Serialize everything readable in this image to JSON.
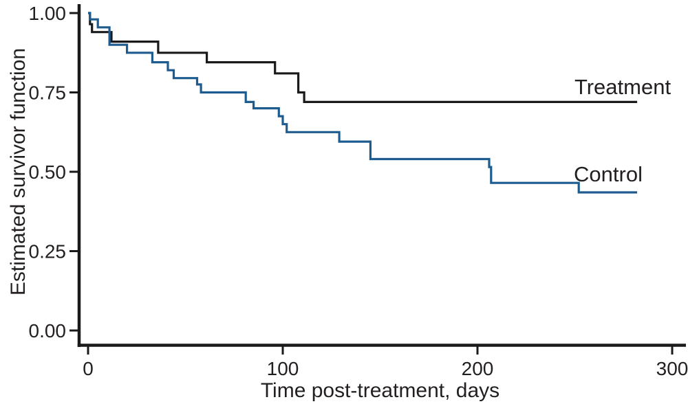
{
  "figure": {
    "background": "#ffffff",
    "text_color": "#231f20",
    "axis_color": "#1a1a1a"
  },
  "chart_data": {
    "type": "line",
    "subtype": "kaplan-meier-step",
    "title": "",
    "xlabel": "Time post-treatment, days",
    "ylabel": "Estimated survivor function",
    "xlim": [
      0,
      300
    ],
    "ylim": [
      0.0,
      1.0
    ],
    "x_ticks": [
      0,
      100,
      200,
      300
    ],
    "x_tick_labels": [
      "0",
      "100",
      "200",
      "300"
    ],
    "y_ticks": [
      0.0,
      0.25,
      0.5,
      0.75,
      1.0
    ],
    "y_tick_labels": [
      "0.00",
      "0.25",
      "0.50",
      "0.75",
      "1.00"
    ],
    "grid": false,
    "legend_position": "inline-labels-right",
    "x_end": 282,
    "series": [
      {
        "name": "Treatment",
        "label": "Treatment",
        "color": "#1a1a1a",
        "steps": [
          [
            0,
            1.0
          ],
          [
            1,
            0.965
          ],
          [
            2,
            0.94
          ],
          [
            12,
            0.91
          ],
          [
            36,
            0.875
          ],
          [
            61,
            0.845
          ],
          [
            96,
            0.81
          ],
          [
            108,
            0.75
          ],
          [
            111,
            0.72
          ]
        ]
      },
      {
        "name": "Control",
        "label": "Control",
        "color": "#1e5c90",
        "steps": [
          [
            0,
            1.0
          ],
          [
            1,
            0.98
          ],
          [
            5,
            0.955
          ],
          [
            11,
            0.9
          ],
          [
            20,
            0.875
          ],
          [
            33,
            0.845
          ],
          [
            41,
            0.82
          ],
          [
            44,
            0.795
          ],
          [
            56,
            0.775
          ],
          [
            58,
            0.75
          ],
          [
            81,
            0.72
          ],
          [
            85,
            0.7
          ],
          [
            98,
            0.675
          ],
          [
            100,
            0.65
          ],
          [
            102,
            0.625
          ],
          [
            129,
            0.595
          ],
          [
            145,
            0.54
          ],
          [
            206,
            0.515
          ],
          [
            207,
            0.465
          ],
          [
            252,
            0.435
          ]
        ]
      }
    ]
  }
}
